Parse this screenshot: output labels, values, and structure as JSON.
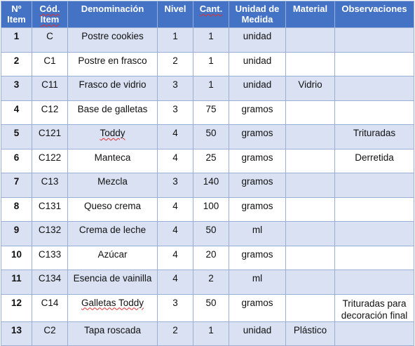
{
  "headers": {
    "item": "Nº Item",
    "code": "Cód. Item",
    "name": "Denominación",
    "level": "Nivel",
    "qty": "Cant.",
    "unit": "Unidad de Medida",
    "material": "Material",
    "notes": "Observaciones"
  },
  "rows": [
    {
      "item": "1",
      "code": "C",
      "name": "Postre cookies",
      "level": "1",
      "qty": "1",
      "unit": "unidad",
      "material": "",
      "notes": ""
    },
    {
      "item": "2",
      "code": "C1",
      "name": "Postre en frasco",
      "level": "2",
      "qty": "1",
      "unit": "unidad",
      "material": "",
      "notes": ""
    },
    {
      "item": "3",
      "code": "C11",
      "name": "Frasco de vidrio",
      "level": "3",
      "qty": "1",
      "unit": "unidad",
      "material": "Vidrio",
      "notes": ""
    },
    {
      "item": "4",
      "code": "C12",
      "name": "Base de galletas",
      "level": "3",
      "qty": "75",
      "unit": "gramos",
      "material": "",
      "notes": ""
    },
    {
      "item": "5",
      "code": "C121",
      "name": "Toddy",
      "level": "4",
      "qty": "50",
      "unit": "gramos",
      "material": "",
      "notes": "Trituradas"
    },
    {
      "item": "6",
      "code": "C122",
      "name": "Manteca",
      "level": "4",
      "qty": "25",
      "unit": "gramos",
      "material": "",
      "notes": "Derretida"
    },
    {
      "item": "7",
      "code": "C13",
      "name": "Mezcla",
      "level": "3",
      "qty": "140",
      "unit": "gramos",
      "material": "",
      "notes": ""
    },
    {
      "item": "8",
      "code": "C131",
      "name": "Queso crema",
      "level": "4",
      "qty": "100",
      "unit": "gramos",
      "material": "",
      "notes": ""
    },
    {
      "item": "9",
      "code": "C132",
      "name": "Crema de leche",
      "level": "4",
      "qty": "50",
      "unit": "ml",
      "material": "",
      "notes": ""
    },
    {
      "item": "10",
      "code": "C133",
      "name": "Azúcar",
      "level": "4",
      "qty": "20",
      "unit": "gramos",
      "material": "",
      "notes": ""
    },
    {
      "item": "11",
      "code": "C134",
      "name": "Esencia de vainilla",
      "level": "4",
      "qty": "2",
      "unit": "ml",
      "material": "",
      "notes": ""
    },
    {
      "item": "12",
      "code": "C14",
      "name": "Galletas Toddy",
      "level": "3",
      "qty": "50",
      "unit": "gramos",
      "material": "",
      "notes": "Trituradas para decoración final"
    },
    {
      "item": "13",
      "code": "C2",
      "name": "Tapa roscada",
      "level": "2",
      "qty": "1",
      "unit": "unidad",
      "material": "Plástico",
      "notes": ""
    }
  ],
  "colors": {
    "header_bg": "#4472c4",
    "band_bg": "#d9e1f2",
    "border": "#9aaed6",
    "spellcheck_underline": "#e03030"
  }
}
